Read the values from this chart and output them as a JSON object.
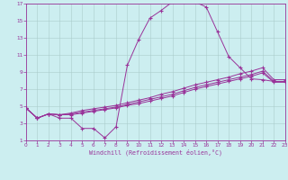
{
  "xlabel": "Windchill (Refroidissement éolien,°C)",
  "bg_color": "#cceef0",
  "line_color": "#993399",
  "grid_color": "#aacccc",
  "xlim": [
    0,
    23
  ],
  "ylim": [
    1,
    17
  ],
  "xticks": [
    0,
    1,
    2,
    3,
    4,
    5,
    6,
    7,
    8,
    9,
    10,
    11,
    12,
    13,
    14,
    15,
    16,
    17,
    18,
    19,
    20,
    21,
    22,
    23
  ],
  "yticks": [
    1,
    3,
    5,
    7,
    9,
    11,
    13,
    15,
    17
  ],
  "series": [
    {
      "x": [
        0,
        1,
        2,
        3,
        4,
        5,
        6,
        7,
        8,
        9,
        10,
        11,
        12,
        13,
        14,
        15,
        16,
        17,
        18,
        19,
        20,
        21,
        22,
        23
      ],
      "y": [
        4.8,
        3.6,
        4.1,
        3.6,
        3.6,
        2.4,
        2.4,
        1.3,
        2.6,
        9.8,
        12.8,
        15.3,
        16.2,
        17.2,
        17.2,
        17.2,
        16.6,
        13.7,
        10.8,
        9.5,
        8.2,
        8.1,
        7.9,
        7.9
      ]
    },
    {
      "x": [
        0,
        1,
        2,
        3,
        4,
        5,
        6,
        7,
        8,
        9,
        10,
        11,
        12,
        13,
        14,
        15,
        16,
        17,
        18,
        19,
        20,
        21,
        22,
        23
      ],
      "y": [
        4.8,
        3.6,
        4.1,
        4.0,
        4.2,
        4.5,
        4.7,
        4.9,
        5.1,
        5.4,
        5.7,
        6.0,
        6.4,
        6.7,
        7.1,
        7.5,
        7.8,
        8.1,
        8.4,
        8.8,
        9.1,
        9.5,
        8.1,
        8.1
      ]
    },
    {
      "x": [
        0,
        1,
        2,
        3,
        4,
        5,
        6,
        7,
        8,
        9,
        10,
        11,
        12,
        13,
        14,
        15,
        16,
        17,
        18,
        19,
        20,
        21,
        22,
        23
      ],
      "y": [
        4.8,
        3.6,
        4.1,
        4.0,
        4.1,
        4.3,
        4.5,
        4.7,
        4.9,
        5.2,
        5.5,
        5.8,
        6.1,
        6.4,
        6.8,
        7.2,
        7.5,
        7.8,
        8.1,
        8.4,
        8.7,
        9.1,
        7.9,
        7.9
      ]
    },
    {
      "x": [
        0,
        1,
        2,
        3,
        4,
        5,
        6,
        7,
        8,
        9,
        10,
        11,
        12,
        13,
        14,
        15,
        16,
        17,
        18,
        19,
        20,
        21,
        22,
        23
      ],
      "y": [
        4.8,
        3.6,
        4.1,
        4.0,
        4.0,
        4.2,
        4.4,
        4.6,
        4.8,
        5.1,
        5.3,
        5.6,
        5.9,
        6.2,
        6.6,
        7.0,
        7.3,
        7.6,
        7.9,
        8.2,
        8.5,
        8.9,
        7.8,
        7.8
      ]
    }
  ]
}
